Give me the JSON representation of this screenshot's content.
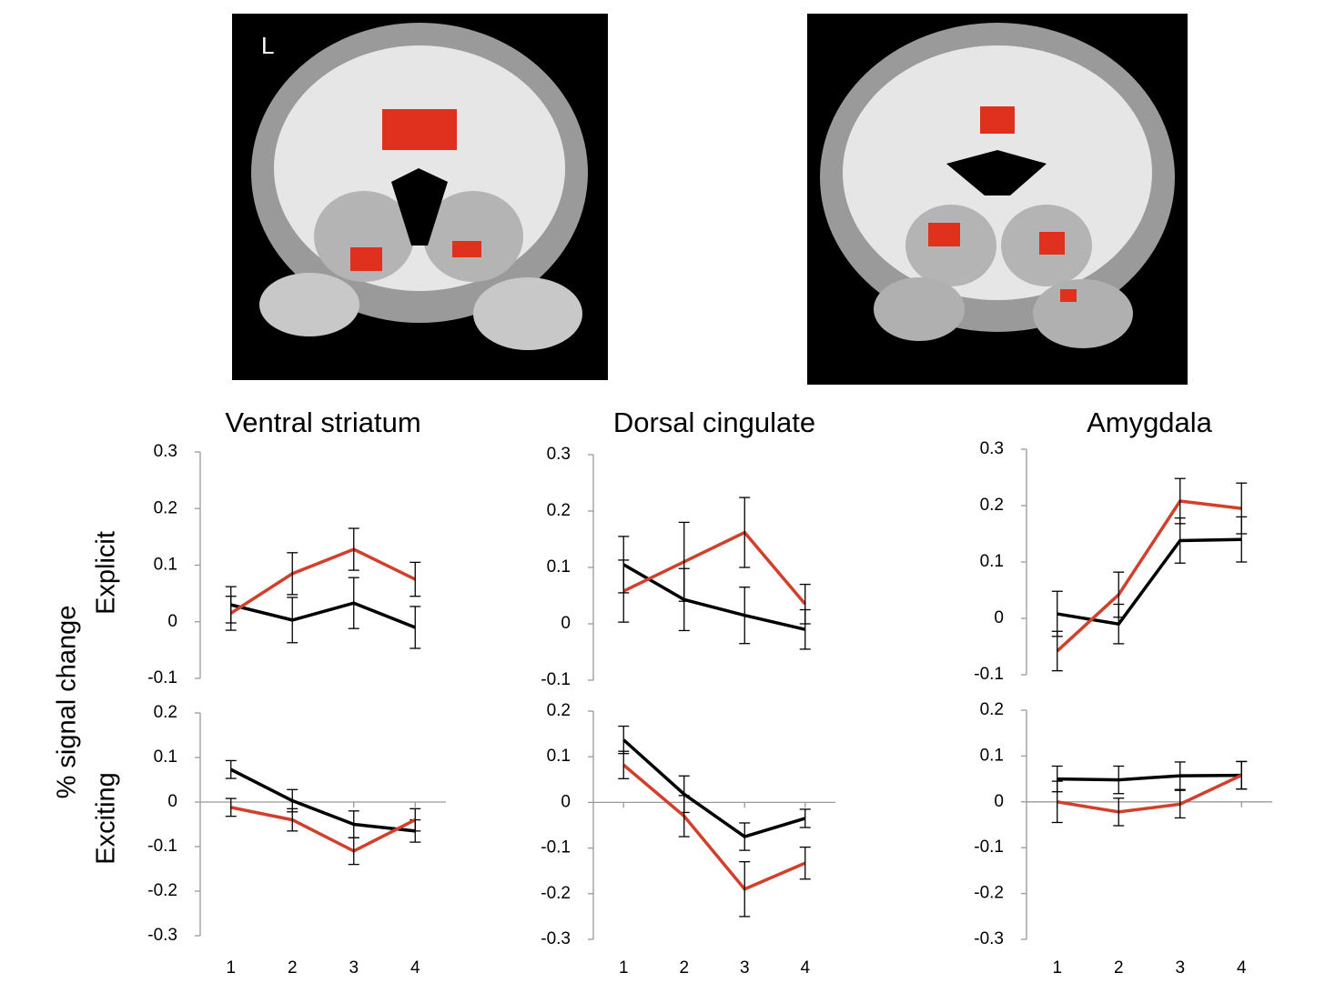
{
  "figure": {
    "image_label": "L",
    "ylabel": "% signal change",
    "rows": [
      "Explicit",
      "Exciting"
    ]
  },
  "chart_data": [
    {
      "type": "line",
      "title": "Ventral striatum",
      "x": [
        1,
        2,
        3,
        4
      ],
      "xlim": [
        0.5,
        4.5
      ],
      "ylim": [
        -0.1,
        0.3
      ],
      "yticks": [
        -0.1,
        0,
        0.1,
        0.2,
        0.3
      ],
      "zero_line": false,
      "series": [
        {
          "color": "#000000",
          "values": [
            0.03,
            0.003,
            0.033,
            -0.01
          ],
          "errors": [
            0.032,
            0.04,
            0.045,
            0.037
          ]
        },
        {
          "color": "#d0402a",
          "values": [
            0.015,
            0.085,
            0.128,
            0.075
          ],
          "errors": [
            0.03,
            0.037,
            0.037,
            0.03
          ]
        }
      ]
    },
    {
      "type": "line",
      "title": "Dorsal cingulate",
      "x": [
        1,
        2,
        3,
        4
      ],
      "xlim": [
        0.5,
        4.5
      ],
      "ylim": [
        -0.1,
        0.3
      ],
      "yticks": [
        -0.1,
        0,
        0.1,
        0.2,
        0.3
      ],
      "zero_line": false,
      "series": [
        {
          "color": "#000000",
          "values": [
            0.105,
            0.043,
            0.015,
            -0.01
          ],
          "errors": [
            0.05,
            0.055,
            0.05,
            0.035
          ]
        },
        {
          "color": "#d0402a",
          "values": [
            0.058,
            0.11,
            0.162,
            0.035
          ],
          "errors": [
            0.055,
            0.07,
            0.062,
            0.035
          ]
        }
      ]
    },
    {
      "type": "line",
      "title": "Amygdala",
      "x": [
        1,
        2,
        3,
        4
      ],
      "xlim": [
        0.5,
        4.5
      ],
      "ylim": [
        -0.1,
        0.3
      ],
      "yticks": [
        -0.1,
        0,
        0.1,
        0.2,
        0.3
      ],
      "zero_line": false,
      "series": [
        {
          "color": "#000000",
          "values": [
            0.008,
            -0.01,
            0.138,
            0.14
          ],
          "errors": [
            0.04,
            0.035,
            0.04,
            0.04
          ]
        },
        {
          "color": "#d0402a",
          "values": [
            -0.058,
            0.042,
            0.208,
            0.195
          ],
          "errors": [
            0.035,
            0.04,
            0.04,
            0.045
          ]
        }
      ]
    },
    {
      "type": "line",
      "x": [
        1,
        2,
        3,
        4
      ],
      "xlim": [
        0.5,
        4.5
      ],
      "xticks": [
        1,
        2,
        3,
        4
      ],
      "ylim": [
        -0.3,
        0.2
      ],
      "yticks": [
        -0.3,
        -0.2,
        -0.1,
        0,
        0.1,
        0.2
      ],
      "zero_line": true,
      "series": [
        {
          "color": "#000000",
          "values": [
            0.073,
            0.003,
            -0.05,
            -0.065
          ],
          "errors": [
            0.02,
            0.025,
            0.03,
            0.025
          ]
        },
        {
          "color": "#d0402a",
          "values": [
            -0.012,
            -0.04,
            -0.11,
            -0.04
          ],
          "errors": [
            0.02,
            0.025,
            0.03,
            0.025
          ]
        }
      ]
    },
    {
      "type": "line",
      "x": [
        1,
        2,
        3,
        4
      ],
      "xlim": [
        0.5,
        4.5
      ],
      "xticks": [
        1,
        2,
        3,
        4
      ],
      "ylim": [
        -0.3,
        0.2
      ],
      "yticks": [
        -0.3,
        -0.2,
        -0.1,
        0,
        0.1,
        0.2
      ],
      "zero_line": true,
      "series": [
        {
          "color": "#000000",
          "values": [
            0.137,
            0.018,
            -0.075,
            -0.035
          ],
          "errors": [
            0.03,
            0.04,
            0.03,
            0.02
          ]
        },
        {
          "color": "#d0402a",
          "values": [
            0.082,
            -0.03,
            -0.19,
            -0.133
          ],
          "errors": [
            0.03,
            0.045,
            0.06,
            0.035
          ]
        }
      ]
    },
    {
      "type": "line",
      "x": [
        1,
        2,
        3,
        4
      ],
      "xlim": [
        0.5,
        4.5
      ],
      "xticks": [
        1,
        2,
        3,
        4
      ],
      "ylim": [
        -0.3,
        0.2
      ],
      "yticks": [
        -0.3,
        -0.2,
        -0.1,
        0,
        0.1,
        0.2
      ],
      "zero_line": true,
      "series": [
        {
          "color": "#000000",
          "values": [
            0.05,
            0.048,
            0.057,
            0.058
          ],
          "errors": [
            0.028,
            0.03,
            0.03,
            0.03
          ]
        },
        {
          "color": "#d0402a",
          "values": [
            0,
            -0.022,
            -0.005,
            0.058
          ],
          "errors": [
            0.045,
            0.03,
            0.03,
            0.03
          ]
        }
      ]
    }
  ]
}
